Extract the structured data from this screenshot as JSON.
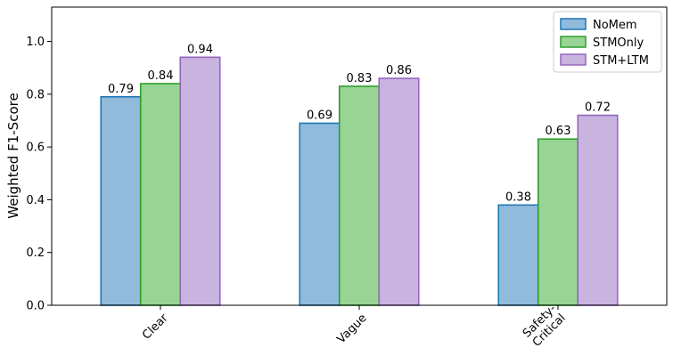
{
  "chart_data": {
    "type": "bar",
    "categories": [
      "Clear",
      "Vague",
      "Safety-\nCritical"
    ],
    "series": [
      {
        "name": "NoMem",
        "values": [
          0.79,
          0.69,
          0.38
        ],
        "fill": "#90bbdc",
        "stroke": "#1f77b4"
      },
      {
        "name": "STMOnly",
        "values": [
          0.84,
          0.83,
          0.63
        ],
        "fill": "#98d494",
        "stroke": "#2ca02c"
      },
      {
        "name": "STM+LTM",
        "values": [
          0.94,
          0.86,
          0.72
        ],
        "fill": "#c9b3df",
        "stroke": "#9467bd"
      }
    ],
    "data_labels": [
      [
        "0.79",
        "0.69",
        "0.38"
      ],
      [
        "0.84",
        "0.83",
        "0.63"
      ],
      [
        "0.94",
        "0.86",
        "0.72"
      ]
    ],
    "ylabel": "Weighted F1-Score",
    "xlabel": "",
    "ylim": [
      0,
      1.13
    ],
    "yticks": [
      "0.0",
      "0.2",
      "0.4",
      "0.6",
      "0.8",
      "1.0"
    ],
    "ytick_values": [
      0,
      0.2,
      0.4,
      0.6,
      0.8,
      1.0
    ],
    "legend_position": "top-right",
    "grid": false
  }
}
